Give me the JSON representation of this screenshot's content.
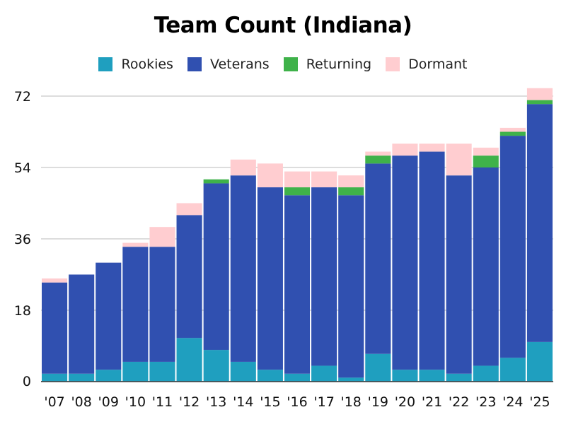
{
  "chart_data": {
    "type": "bar",
    "stacked": true,
    "title": "Team Count (Indiana)",
    "xlabel": "",
    "ylabel": "",
    "categories": [
      "'07",
      "'08",
      "'09",
      "'10",
      "'11",
      "'12",
      "'13",
      "'14",
      "'15",
      "'16",
      "'17",
      "'18",
      "'19",
      "'20",
      "'21",
      "'22",
      "'23",
      "'24",
      "'25"
    ],
    "series": [
      {
        "name": "Rookies",
        "color": "#1f9fbf",
        "values": [
          2,
          2,
          3,
          5,
          5,
          11,
          8,
          5,
          3,
          2,
          4,
          1,
          7,
          3,
          3,
          2,
          4,
          6,
          10
        ]
      },
      {
        "name": "Veterans",
        "color": "#3050b0",
        "values": [
          23,
          25,
          27,
          29,
          29,
          31,
          42,
          47,
          46,
          45,
          45,
          46,
          48,
          54,
          55,
          50,
          50,
          56,
          60
        ]
      },
      {
        "name": "Returning",
        "color": "#3fb24a",
        "values": [
          0,
          0,
          0,
          0,
          0,
          0,
          1,
          0,
          0,
          2,
          0,
          2,
          2,
          0,
          0,
          0,
          3,
          1,
          1
        ]
      },
      {
        "name": "Dormant",
        "color": "#ffcdd0",
        "values": [
          1,
          0,
          0,
          1,
          5,
          3,
          0,
          4,
          6,
          4,
          4,
          3,
          1,
          3,
          2,
          8,
          2,
          1,
          3
        ]
      }
    ],
    "y_ticks": [
      0,
      18,
      36,
      54,
      72
    ],
    "ylim": [
      0,
      72
    ],
    "grid": true,
    "legend_position": "top"
  }
}
